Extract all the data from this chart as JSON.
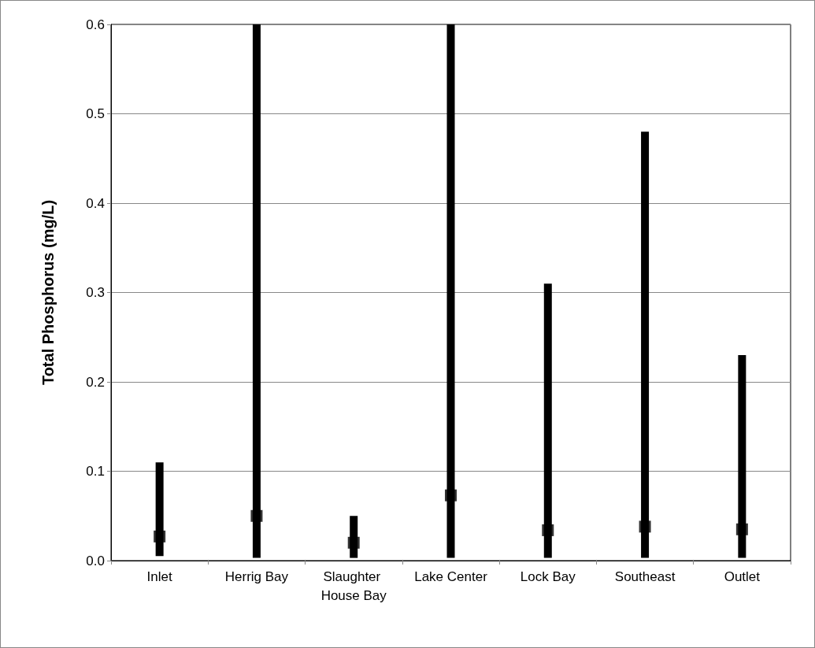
{
  "chart_data": {
    "type": "bar",
    "ylabel": "Total Phosphorus (mg/L)",
    "categories": [
      "Inlet",
      "Herrig Bay",
      "Slaughter House Bay",
      "Lake Center",
      "Lock Bay",
      "Southeast",
      "Outlet"
    ],
    "series": [
      {
        "color": "#000000",
        "base": [
          0.005,
          0.003,
          0.003,
          0.003,
          0.003,
          0.003,
          0.003
        ],
        "values": [
          0.105,
          0.597,
          0.047,
          0.597,
          0.307,
          0.477,
          0.227
        ]
      },
      {
        "type": "scatter",
        "color": "#000000",
        "marker": "square",
        "x": [
          "Inlet",
          "Herrig Bay",
          "Slaughter House Bay",
          "Lake Center",
          "Lock Bay",
          "Southeast",
          "Outlet"
        ],
        "values": [
          0.027,
          0.05,
          0.02,
          0.073,
          0.034,
          0.038,
          0.035
        ]
      }
    ],
    "ylim": [
      0,
      0.6
    ],
    "yticks": [
      {
        "value": 0,
        "label": "0.0"
      },
      0.1,
      0.2,
      0.3,
      0.4,
      0.5,
      0.6
    ],
    "grid": "y"
  }
}
